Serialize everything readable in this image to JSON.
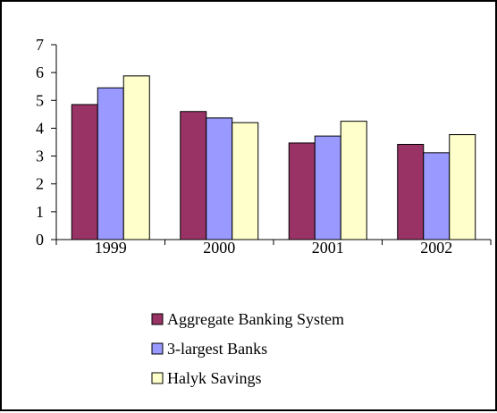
{
  "chart_data": {
    "type": "bar",
    "categories": [
      "1999",
      "2000",
      "2001",
      "2002"
    ],
    "series": [
      {
        "name": "Aggregate Banking System",
        "values": [
          4.85,
          4.6,
          3.47,
          3.42
        ],
        "color": "#993366"
      },
      {
        "name": "3-largest Banks",
        "values": [
          5.45,
          4.37,
          3.72,
          3.12
        ],
        "color": "#9999ff"
      },
      {
        "name": "Halyk Savings",
        "values": [
          5.88,
          4.2,
          4.25,
          3.77
        ],
        "color": "#ffffcc"
      }
    ],
    "ylim": [
      0,
      7
    ],
    "yticks": [
      "0",
      "1",
      "2",
      "3",
      "4",
      "5",
      "6",
      "7"
    ],
    "title": "",
    "xlabel": "",
    "ylabel": "",
    "grid": false,
    "legend_position": "bottom"
  }
}
